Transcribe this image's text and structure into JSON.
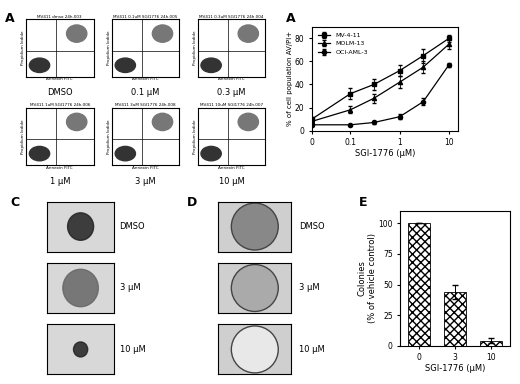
{
  "panels": {
    "flow": {
      "panel_label": "A",
      "x_label": "Annexin FITC",
      "y_label": "Propidium Iodide",
      "plots": [
        {
          "header": "MV411 dmso 24h.003",
          "label": "DMSO"
        },
        {
          "header": "MV411 0.1uM SGI1776 24h.005",
          "label": "0.1 µM"
        },
        {
          "header": "MV411 0.3uM SGI1776 24h.004",
          "label": "0.3 µM"
        },
        {
          "header": "MV411 1uM SGI1776 24h.006",
          "label": "1 µM"
        },
        {
          "header": "MV411 3uM SGI1776 24h.008",
          "label": "3 µM"
        },
        {
          "header": "MV411 10uM SGI1776 24h.007",
          "label": "10 µM"
        }
      ]
    },
    "spheroids": {
      "panel_label": "C",
      "images": [
        "DMSO",
        "3 µM",
        "10 µM"
      ]
    },
    "plates": {
      "panel_label": "D",
      "images": [
        "DMSO",
        "3 µM",
        "10 µM"
      ]
    }
  },
  "chart_data": [
    {
      "type": "line",
      "panel_label": "A",
      "x_label": "SGI-1776 (µM)",
      "y_label": "% of cell population AV/PI+",
      "x": [
        0,
        0.1,
        0.3,
        1,
        3,
        10
      ],
      "log": "x",
      "xlim": [
        0,
        15
      ],
      "xticks": [
        0,
        0.1,
        1,
        10
      ],
      "ylim": [
        0,
        90
      ],
      "yticks": [
        0,
        20,
        40,
        60,
        80
      ],
      "legend": "upper left",
      "series": [
        {
          "name": "MV-4-11",
          "color": "#000000",
          "marker": "square",
          "line_style": "solid",
          "values": [
            10,
            32,
            40,
            52,
            65,
            80
          ],
          "errors": [
            2,
            5,
            5,
            5,
            6,
            3
          ]
        },
        {
          "name": "MOLM-13",
          "color": "#000000",
          "marker": "triangle",
          "line_style": "solid",
          "values": [
            8,
            18,
            28,
            42,
            55,
            75
          ],
          "errors": [
            1,
            3,
            4,
            5,
            5,
            4
          ]
        },
        {
          "name": "OCI-AML-3",
          "color": "#000000",
          "marker": "circle",
          "line_style": "solid",
          "values": [
            5,
            5,
            7,
            12,
            25,
            57
          ],
          "errors": [
            1,
            1,
            1,
            2,
            3,
            2
          ]
        }
      ]
    },
    {
      "type": "bar",
      "panel_label": "E",
      "x_label": "SGI-1776 (µM)",
      "y_label": "Colonies\n(% of vehicle control)",
      "categories": [
        "0",
        "3",
        "10"
      ],
      "values": [
        100,
        44,
        4
      ],
      "errors": [
        0,
        6,
        2
      ],
      "color": "#ffffff",
      "ylim": [
        0,
        110
      ],
      "yticks": [
        0,
        25,
        50,
        75,
        100
      ]
    }
  ]
}
